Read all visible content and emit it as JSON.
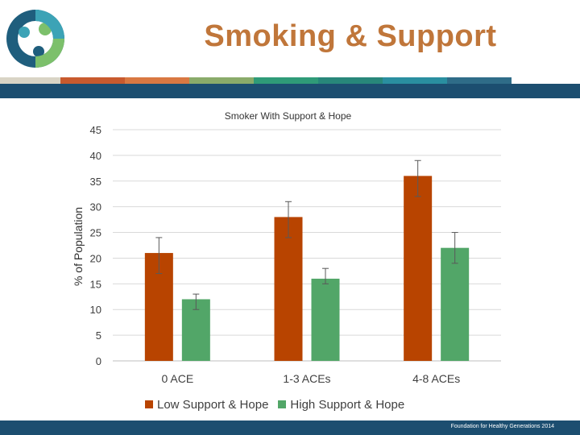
{
  "slide": {
    "title": "Smoking & Support",
    "footer": "Foundation for Healthy Generations 2014",
    "stripe_colors": [
      "#d9d4c5",
      "#c85a2e",
      "#d97842",
      "#8aab6a",
      "#2f9b78",
      "#28877a",
      "#2a8fa0",
      "#2f6c88"
    ],
    "band_color": "#1c4e70",
    "title_color": "#c0763a",
    "logo_colors": [
      "#1f5e7d",
      "#7cc06b",
      "#3ca3b6"
    ]
  },
  "chart_data": {
    "type": "bar",
    "title": "Smoker With Support & Hope",
    "ylabel": "% of Population",
    "xlabel": "",
    "ylim": [
      0,
      45
    ],
    "yticks": [
      0,
      5,
      10,
      15,
      20,
      25,
      30,
      35,
      40,
      45
    ],
    "categories": [
      "0 ACE",
      "1-3 ACEs",
      "4-8 ACEs"
    ],
    "grid": true,
    "legend_position": "bottom",
    "series": [
      {
        "name": "Low Support & Hope",
        "color": "#b84400",
        "values": [
          21,
          28,
          36
        ],
        "error_low": [
          17,
          24,
          32
        ],
        "error_high": [
          24,
          31,
          39
        ]
      },
      {
        "name": "High Support & Hope",
        "color": "#52a668",
        "values": [
          12,
          16,
          22
        ],
        "error_low": [
          10,
          15,
          19
        ],
        "error_high": [
          13,
          18,
          25
        ]
      }
    ]
  }
}
